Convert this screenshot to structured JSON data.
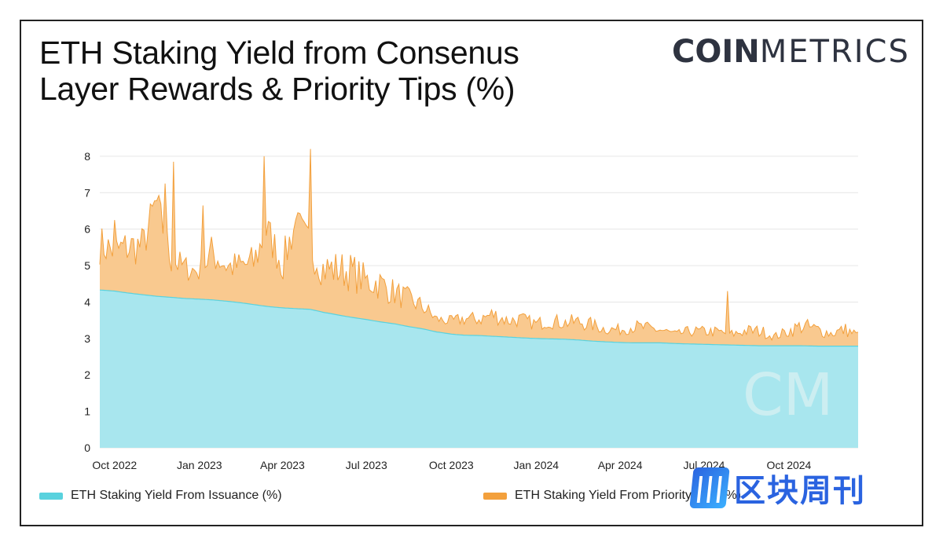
{
  "title_lines": [
    "ETH Staking Yield from Consenus",
    "Layer Rewards & Priority Tips (%)"
  ],
  "brand": {
    "bold": "COIN",
    "light": "METRICS"
  },
  "watermark": {
    "mark": "|||",
    "text": "区块周刊"
  },
  "colors": {
    "issuance_fill": "#a8e6ee",
    "issuance_line": "#59d2de",
    "tips_fill": "#f9c98f",
    "tips_line": "#f3a03c",
    "grid": "#e6e6e6",
    "axis_text": "#222222"
  },
  "chart_data": {
    "type": "area",
    "stacked": true,
    "ylim": [
      0,
      8.3
    ],
    "yticks": [
      0,
      1,
      2,
      3,
      4,
      5,
      6,
      7,
      8
    ],
    "x_range": [
      "2022-09-15",
      "2024-12-15"
    ],
    "xticks": [
      {
        "label": "Oct 2022",
        "date": "2022-10-01"
      },
      {
        "label": "Jan 2023",
        "date": "2023-01-01"
      },
      {
        "label": "Apr 2023",
        "date": "2023-04-01"
      },
      {
        "label": "Jul 2023",
        "date": "2023-07-01"
      },
      {
        "label": "Oct 2023",
        "date": "2023-10-01"
      },
      {
        "label": "Jan 2024",
        "date": "2024-01-01"
      },
      {
        "label": "Apr 2024",
        "date": "2024-04-01"
      },
      {
        "label": "Jul 2024",
        "date": "2024-07-01"
      },
      {
        "label": "Oct 2024",
        "date": "2024-10-01"
      }
    ],
    "series": [
      {
        "name": "ETH Staking Yield From Issuance (%)",
        "x": [
          "2022-09-15",
          "2022-10-01",
          "2022-10-15",
          "2022-11-01",
          "2022-11-15",
          "2022-12-01",
          "2022-12-15",
          "2023-01-01",
          "2023-01-15",
          "2023-02-01",
          "2023-02-15",
          "2023-03-01",
          "2023-03-15",
          "2023-04-01",
          "2023-04-15",
          "2023-05-01",
          "2023-05-15",
          "2023-06-01",
          "2023-06-15",
          "2023-07-01",
          "2023-07-15",
          "2023-08-01",
          "2023-08-15",
          "2023-09-01",
          "2023-09-15",
          "2023-10-01",
          "2023-10-15",
          "2023-11-01",
          "2023-11-15",
          "2023-12-01",
          "2023-12-15",
          "2024-01-01",
          "2024-01-15",
          "2024-02-01",
          "2024-02-15",
          "2024-03-01",
          "2024-03-15",
          "2024-04-01",
          "2024-04-15",
          "2024-05-01",
          "2024-05-15",
          "2024-06-01",
          "2024-06-15",
          "2024-07-01",
          "2024-07-15",
          "2024-08-01",
          "2024-08-15",
          "2024-09-01",
          "2024-09-15",
          "2024-10-01",
          "2024-10-15",
          "2024-11-01",
          "2024-11-15",
          "2024-12-01",
          "2024-12-15"
        ],
        "values": [
          4.33,
          4.3,
          4.25,
          4.2,
          4.16,
          4.13,
          4.1,
          4.08,
          4.06,
          4.02,
          3.98,
          3.93,
          3.88,
          3.84,
          3.82,
          3.8,
          3.72,
          3.64,
          3.58,
          3.52,
          3.46,
          3.4,
          3.33,
          3.26,
          3.18,
          3.12,
          3.09,
          3.08,
          3.06,
          3.04,
          3.02,
          3.0,
          2.99,
          2.98,
          2.96,
          2.93,
          2.91,
          2.89,
          2.88,
          2.88,
          2.88,
          2.86,
          2.85,
          2.84,
          2.83,
          2.82,
          2.81,
          2.8,
          2.8,
          2.8,
          2.8,
          2.79,
          2.79,
          2.79,
          2.79
        ]
      },
      {
        "name": "ETH Staking Yield From Priority Tips (%)",
        "x": [
          "2022-09-15",
          "2022-10-01",
          "2022-10-15",
          "2022-11-01",
          "2022-11-15",
          "2022-12-01",
          "2022-12-15",
          "2023-01-01",
          "2023-01-15",
          "2023-02-01",
          "2023-02-15",
          "2023-03-01",
          "2023-03-15",
          "2023-04-01",
          "2023-04-15",
          "2023-05-01",
          "2023-05-15",
          "2023-06-01",
          "2023-06-15",
          "2023-07-01",
          "2023-07-15",
          "2023-08-01",
          "2023-08-15",
          "2023-09-01",
          "2023-09-15",
          "2023-10-01",
          "2023-10-15",
          "2023-11-01",
          "2023-11-15",
          "2023-12-01",
          "2023-12-15",
          "2024-01-01",
          "2024-01-15",
          "2024-02-01",
          "2024-02-15",
          "2024-03-01",
          "2024-03-15",
          "2024-04-01",
          "2024-04-15",
          "2024-05-01",
          "2024-05-15",
          "2024-06-01",
          "2024-06-15",
          "2024-07-01",
          "2024-07-15",
          "2024-08-01",
          "2024-08-15",
          "2024-09-01",
          "2024-09-15",
          "2024-10-01",
          "2024-10-15",
          "2024-11-01",
          "2024-11-15",
          "2024-12-01",
          "2024-12-15"
        ],
        "values": [
          1.25,
          1.1,
          1.25,
          1.35,
          2.6,
          1.05,
          0.85,
          0.75,
          1.3,
          0.95,
          1.0,
          1.15,
          2.1,
          1.2,
          2.35,
          1.7,
          1.2,
          1.25,
          1.25,
          1.05,
          1.05,
          0.85,
          0.75,
          0.6,
          0.35,
          0.35,
          0.45,
          0.45,
          0.6,
          0.45,
          0.5,
          0.4,
          0.5,
          0.45,
          0.5,
          0.45,
          0.35,
          0.35,
          0.45,
          0.4,
          0.35,
          0.25,
          0.35,
          0.35,
          0.35,
          0.3,
          0.4,
          0.4,
          0.25,
          0.4,
          0.55,
          0.45,
          0.35,
          0.45,
          0.3
        ]
      }
    ],
    "spikes": [
      {
        "series": 1,
        "date": "2022-10-01",
        "total": 6.25
      },
      {
        "series": 1,
        "date": "2022-11-25",
        "total": 7.25
      },
      {
        "series": 1,
        "date": "2022-12-03",
        "total": 7.85
      },
      {
        "series": 1,
        "date": "2023-01-06",
        "total": 6.65
      },
      {
        "series": 1,
        "date": "2023-03-11",
        "total": 8.0
      },
      {
        "series": 1,
        "date": "2023-04-17",
        "total": 6.45
      },
      {
        "series": 1,
        "date": "2023-05-02",
        "total": 8.2
      },
      {
        "series": 1,
        "date": "2024-07-27",
        "total": 4.3
      }
    ]
  },
  "legend": [
    {
      "label": "ETH Staking Yield From Issuance (%)",
      "color": "#59d2de"
    },
    {
      "label": "ETH Staking Yield From Priority Tips (%)",
      "color": "#f3a03c"
    }
  ]
}
